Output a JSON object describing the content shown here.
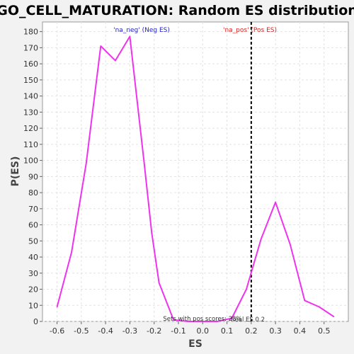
{
  "chart_data": {
    "type": "line",
    "title": "GO_CELL_MATURATION: Random ES distribution",
    "xlabel": "ES",
    "ylabel": "P(ES)",
    "xlim": [
      -0.66,
      0.6
    ],
    "ylim": [
      0,
      186
    ],
    "x_ticks": [
      -0.6,
      -0.5,
      -0.4,
      -0.3,
      -0.2,
      -0.1,
      0.0,
      0.1,
      0.2,
      0.3,
      0.4,
      0.5
    ],
    "x_tick_labels": [
      "-0.6",
      "-0.5",
      "-0.4",
      "-0.3",
      "-0.2",
      "-0.1",
      "0.0",
      "0.1",
      "0.2",
      "0.3",
      "0.4",
      "0.5"
    ],
    "y_ticks": [
      0,
      10,
      20,
      30,
      40,
      50,
      60,
      70,
      80,
      90,
      100,
      110,
      120,
      130,
      140,
      150,
      160,
      170,
      180
    ],
    "y_tick_labels": [
      "0",
      "10",
      "20",
      "30",
      "40",
      "50",
      "60",
      "70",
      "80",
      "90",
      "100",
      "110",
      "120",
      "130",
      "140",
      "150",
      "160",
      "170",
      "180"
    ],
    "grid": true,
    "series": [
      {
        "color": "#ee33ee",
        "x": [
          -0.6,
          -0.54,
          -0.48,
          -0.42,
          -0.36,
          -0.3,
          -0.24,
          -0.21,
          -0.18,
          -0.12,
          -0.06,
          0.0,
          0.06,
          0.12,
          0.18,
          0.24,
          0.3,
          0.36,
          0.42,
          0.48,
          0.54
        ],
        "y": [
          9,
          43,
          98,
          171,
          162,
          177,
          97,
          55,
          24,
          1,
          0,
          0,
          0,
          2,
          20,
          51,
          74,
          48,
          13,
          9,
          3
        ]
      }
    ],
    "vline": {
      "x": 0.2,
      "style": "dashed",
      "color": "#000000"
    },
    "annotations": {
      "neg_label": {
        "text": "'na_neg' (Neg ES)",
        "color": "#2222cc"
      },
      "pos_label": {
        "text": "'na_pos' (Pos ES)",
        "color": "#dd2222"
      },
      "sets_text": "Sets with pos scores: 23%",
      "real_es_text": "Real ES 0.2"
    }
  }
}
